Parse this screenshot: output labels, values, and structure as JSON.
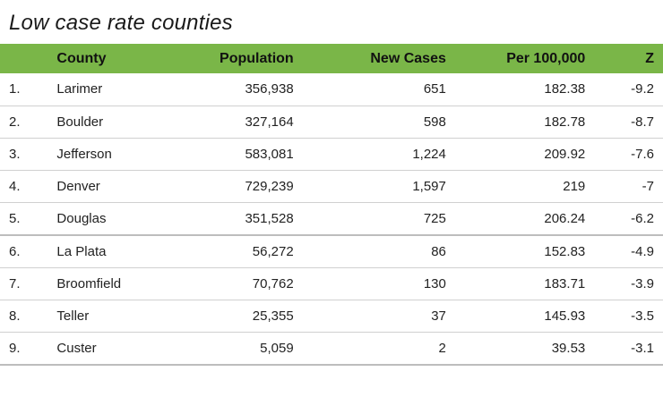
{
  "title": "Low case rate counties",
  "columns": {
    "rank": "",
    "county": "County",
    "population": "Population",
    "new_cases": "New Cases",
    "per_100k": "Per 100,000",
    "z": "Z"
  },
  "rows": [
    {
      "rank": "1.",
      "county": "Larimer",
      "population": "356,938",
      "new_cases": "651",
      "per_100k": "182.38",
      "z": "-9.2"
    },
    {
      "rank": "2.",
      "county": "Boulder",
      "population": "327,164",
      "new_cases": "598",
      "per_100k": "182.78",
      "z": "-8.7"
    },
    {
      "rank": "3.",
      "county": "Jefferson",
      "population": "583,081",
      "new_cases": "1,224",
      "per_100k": "209.92",
      "z": "-7.6"
    },
    {
      "rank": "4.",
      "county": "Denver",
      "population": "729,239",
      "new_cases": "1,597",
      "per_100k": "219",
      "z": "-7"
    },
    {
      "rank": "5.",
      "county": "Douglas",
      "population": "351,528",
      "new_cases": "725",
      "per_100k": "206.24",
      "z": "-6.2"
    },
    {
      "rank": "6.",
      "county": "La Plata",
      "population": "56,272",
      "new_cases": "86",
      "per_100k": "152.83",
      "z": "-4.9"
    },
    {
      "rank": "7.",
      "county": "Broomfield",
      "population": "70,762",
      "new_cases": "130",
      "per_100k": "183.71",
      "z": "-3.9"
    },
    {
      "rank": "8.",
      "county": "Teller",
      "population": "25,355",
      "new_cases": "37",
      "per_100k": "145.93",
      "z": "-3.5"
    },
    {
      "rank": "9.",
      "county": "Custer",
      "population": "5,059",
      "new_cases": "2",
      "per_100k": "39.53",
      "z": "-3.1"
    }
  ],
  "colors": {
    "header_bg": "#7ab648",
    "row_divider": "#d0d0d0"
  }
}
